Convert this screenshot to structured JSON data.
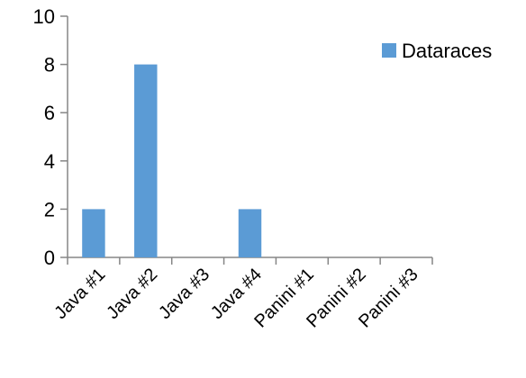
{
  "chart_data": {
    "type": "bar",
    "title": "",
    "xlabel": "",
    "ylabel": "",
    "categories": [
      "Java #1",
      "Java #2",
      "Java #3",
      "Java #4",
      "Panini #1",
      "Panini #2",
      "Panini #3"
    ],
    "series": [
      {
        "name": "Dataraces",
        "values": [
          2,
          8,
          0,
          2,
          0,
          0,
          0
        ],
        "color": "#5b9bd5"
      }
    ],
    "ylim": [
      0,
      10
    ],
    "yticks": [
      0,
      2,
      4,
      6,
      8,
      10
    ],
    "grid": false,
    "legend_position": "right"
  }
}
